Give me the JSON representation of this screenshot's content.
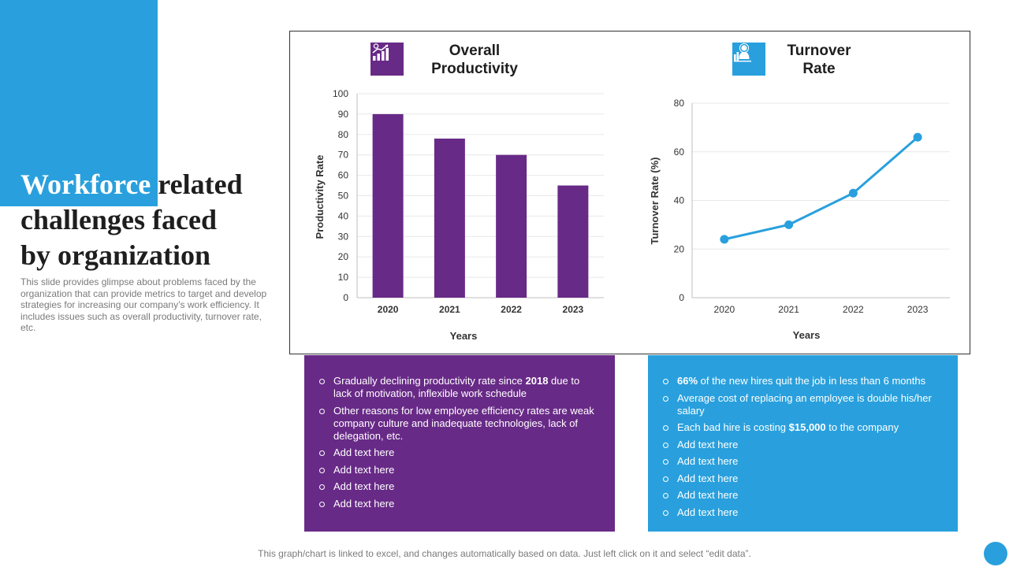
{
  "slide": {
    "title_highlight": "Workforce",
    "title_rest_1": " related",
    "title_line_2": "challenges faced",
    "title_line_3": "by organization",
    "subtitle": "This slide provides glimpse about problems faced by the organization that can provide metrics to target and develop strategies for increasing our company’s work efficiency. It includes issues such as overall productivity, turnover rate, etc.",
    "footer": "This graph/chart is linked to excel, and changes automatically based on data. Just left click on it and select “edit data”."
  },
  "colors": {
    "purple": "#682a87",
    "blue": "#29a0dd"
  },
  "icons": {
    "productivity": "growth-chart-icon",
    "turnover": "employee-turnover-icon"
  },
  "charts_header": {
    "productivity_title_1": "Overall",
    "productivity_title_2": "Productivity",
    "turnover_title_1": "Turnover",
    "turnover_title_2": "Rate"
  },
  "chart_data": [
    {
      "type": "bar",
      "title": "Overall Productivity",
      "categories": [
        "2020",
        "2021",
        "2022",
        "2023"
      ],
      "values": [
        90,
        78,
        70,
        55
      ],
      "xlabel": "Years",
      "ylabel": "Productivity Rate",
      "ylim": [
        0,
        100
      ],
      "yticks": [
        0,
        10,
        20,
        30,
        40,
        50,
        60,
        70,
        80,
        90,
        100
      ],
      "color": "#682a87",
      "grid": true
    },
    {
      "type": "line",
      "title": "Turnover Rate",
      "categories": [
        "2020",
        "2021",
        "2022",
        "2023"
      ],
      "values": [
        24,
        30,
        43,
        66
      ],
      "xlabel": "Years",
      "ylabel": "Turnover Rate (%)",
      "ylim": [
        0,
        80
      ],
      "yticks": [
        0,
        20,
        40,
        60,
        80
      ],
      "color": "#29a0dd",
      "grid": true
    }
  ],
  "productivity_panel": {
    "bullets": [
      {
        "before": "Gradually declining productivity rate since ",
        "bold": "2018",
        "after": " due to lack of motivation, inflexible work schedule"
      },
      {
        "before": "Other reasons for low employee efficiency rates are weak company culture and inadequate technologies, lack of delegation, etc.",
        "bold": "",
        "after": ""
      },
      {
        "before": "Add text here",
        "bold": "",
        "after": ""
      },
      {
        "before": "Add text here",
        "bold": "",
        "after": ""
      },
      {
        "before": "Add text here",
        "bold": "",
        "after": ""
      },
      {
        "before": "Add text here",
        "bold": "",
        "after": ""
      }
    ]
  },
  "turnover_panel": {
    "bullets": [
      {
        "before": "",
        "bold": "66%",
        "after": " of the new hires quit the job in less than 6 months"
      },
      {
        "before": "Average  cost of replacing an employee  is double his/her salary",
        "bold": "",
        "after": ""
      },
      {
        "before": "Each bad hire is costing ",
        "bold": "$15,000",
        "after": " to the company"
      },
      {
        "before": "Add text here",
        "bold": "",
        "after": ""
      },
      {
        "before": "Add text here",
        "bold": "",
        "after": ""
      },
      {
        "before": "Add text here",
        "bold": "",
        "after": ""
      },
      {
        "before": "Add text here",
        "bold": "",
        "after": ""
      },
      {
        "before": "Add text here",
        "bold": "",
        "after": ""
      }
    ]
  }
}
